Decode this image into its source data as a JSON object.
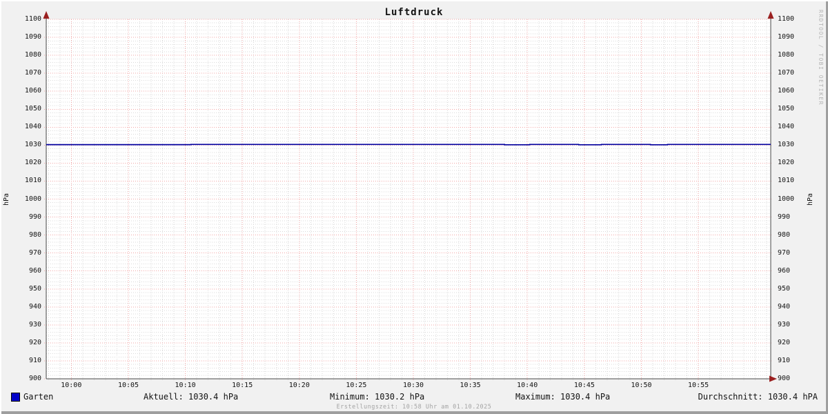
{
  "header": {
    "title": "Luftdruck"
  },
  "axis": {
    "left_unit": "hPa",
    "right_unit": "hPa"
  },
  "watermark": {
    "text": "RRDTOOL / TOBI OETIKER"
  },
  "legend": {
    "series_label": "Garten",
    "current": "Aktuell: 1030.4 hPa",
    "min": "Minimum: 1030.2 hPa",
    "max": "Maximum: 1030.4 hPa",
    "avg": "Durchschnitt: 1030.4 hPA"
  },
  "footer": {
    "creation": "Erstellungszeit: 10:58 Uhr am 01.10.2025"
  },
  "colors": {
    "outer_bg": "#f1f1f1",
    "plot_bg": "#ffffff",
    "grid_major": "#f2a3a3",
    "grid_minor": "#d9d9d9",
    "axis": "#474747",
    "arrow": "#9a2020",
    "series": "#0000a0",
    "legend_swatch": "#0000c8",
    "text": "#111111",
    "muted_text": "#a3a3a3"
  },
  "chart_data": {
    "type": "line",
    "title": "Luftdruck",
    "xlabel": "",
    "ylabel": "hPa",
    "ylabel_right": "hPa",
    "ylim": [
      900,
      1100
    ],
    "y_major_step": 10,
    "y_minor_step": 2,
    "x_start_min": -2.2,
    "x_end_min": 61.35,
    "x_major_step_min": 5,
    "x_minor_step_min": 1,
    "x_major_first_min": 0,
    "x_major_last_min": 55,
    "x_tick_labels": [
      "10:00",
      "10:05",
      "10:10",
      "10:15",
      "10:20",
      "10:25",
      "10:30",
      "10:35",
      "10:40",
      "10:45",
      "10:50",
      "10:55"
    ],
    "grid": true,
    "legend_position": "bottom",
    "series": [
      {
        "name": "Garten",
        "color": "#0000a0",
        "step_points": [
          [
            -2.2,
            1030.3
          ],
          [
            10.5,
            1030.3
          ],
          [
            10.5,
            1030.4
          ],
          [
            38.0,
            1030.4
          ],
          [
            38.0,
            1030.2
          ],
          [
            40.2,
            1030.2
          ],
          [
            40.2,
            1030.4
          ],
          [
            44.5,
            1030.4
          ],
          [
            44.5,
            1030.2
          ],
          [
            46.5,
            1030.2
          ],
          [
            46.5,
            1030.4
          ],
          [
            50.8,
            1030.4
          ],
          [
            50.8,
            1030.2
          ],
          [
            52.3,
            1030.2
          ],
          [
            52.3,
            1030.4
          ],
          [
            61.35,
            1030.4
          ]
        ]
      }
    ],
    "stats": {
      "current_hpa": 1030.4,
      "min_hpa": 1030.2,
      "max_hpa": 1030.4,
      "avg_hpa": 1030.4
    }
  }
}
